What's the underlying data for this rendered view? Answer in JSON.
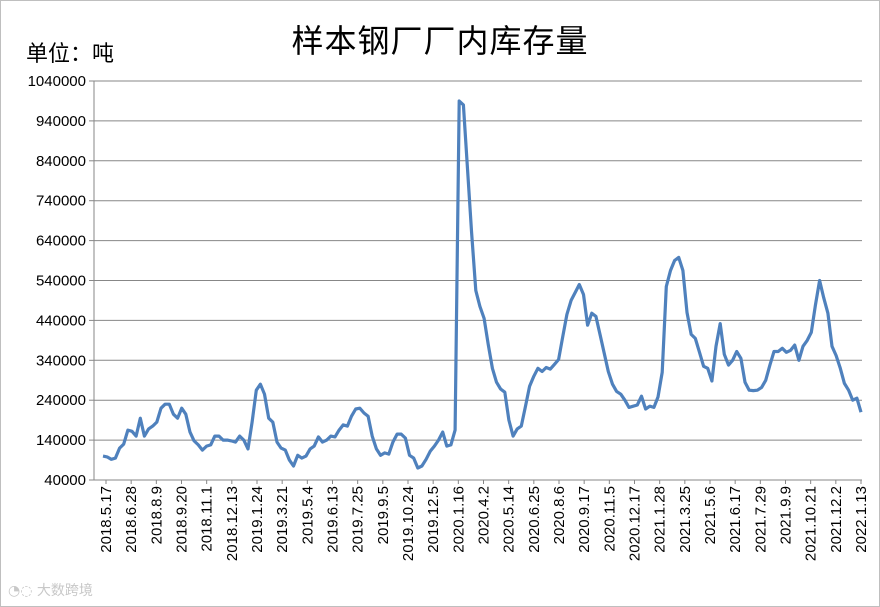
{
  "chart_data": {
    "type": "line",
    "title": "样本钢厂厂内库存量",
    "unit_label": "单位：吨",
    "ylim": [
      40000,
      1040000
    ],
    "yticks": [
      "40000",
      "140000",
      "240000",
      "340000",
      "440000",
      "540000",
      "640000",
      "740000",
      "840000",
      "940000",
      "1040000"
    ],
    "grid": true,
    "legend": "none",
    "line_color": "#4f81bd",
    "x_tick_labels": [
      "2018.5.17",
      "2018.6.28",
      "2018.8.9",
      "2018.9.20",
      "2018.11.1",
      "2018.12.13",
      "2019.1.24",
      "2019.3.21",
      "2019.5.4",
      "2019.6.13",
      "2019.7.25",
      "2019.9.5",
      "2019.10.24",
      "2019.12.5",
      "2020.1.16",
      "2020.4.2",
      "2020.5.14",
      "2020.6.25",
      "2020.8.6",
      "2020.9.17",
      "2020.11.5",
      "2020.12.17",
      "2021.1.28",
      "2021.3.25",
      "2021.5.6",
      "2021.6.17",
      "2021.7.29",
      "2021.9.9",
      "2021.10.21",
      "2021.12.2",
      "2022.1.13"
    ],
    "series": [
      {
        "values": [
          100000,
          98000,
          92000,
          95000,
          120000,
          130000,
          165000,
          162000,
          150000,
          195000,
          150000,
          168000,
          175000,
          185000,
          220000,
          230000,
          230000,
          205000,
          195000,
          220000,
          205000,
          160000,
          138000,
          128000,
          115000,
          125000,
          128000,
          150000,
          150000,
          140000,
          140000,
          138000,
          135000,
          150000,
          140000,
          118000,
          185000,
          265000,
          280000,
          255000,
          195000,
          185000,
          135000,
          120000,
          115000,
          90000,
          75000,
          102000,
          95000,
          100000,
          118000,
          125000,
          148000,
          135000,
          140000,
          150000,
          148000,
          165000,
          178000,
          175000,
          200000,
          218000,
          220000,
          208000,
          200000,
          150000,
          118000,
          102000,
          108000,
          105000,
          135000,
          155000,
          155000,
          145000,
          102000,
          95000,
          70000,
          75000,
          92000,
          112000,
          125000,
          140000,
          160000,
          125000,
          128000,
          165000,
          990000,
          980000,
          820000,
          660000,
          515000,
          475000,
          445000,
          380000,
          320000,
          285000,
          268000,
          260000,
          190000,
          150000,
          168000,
          175000,
          225000,
          275000,
          300000,
          320000,
          312000,
          322000,
          318000,
          330000,
          342000,
          400000,
          455000,
          490000,
          510000,
          530000,
          505000,
          428000,
          458000,
          450000,
          405000,
          358000,
          312000,
          280000,
          262000,
          255000,
          240000,
          222000,
          225000,
          228000,
          250000,
          218000,
          225000,
          222000,
          248000,
          310000,
          525000,
          565000,
          590000,
          598000,
          565000,
          460000,
          405000,
          395000,
          360000,
          325000,
          320000,
          288000,
          375000,
          432000,
          355000,
          328000,
          340000,
          362000,
          345000,
          285000,
          265000,
          264000,
          265000,
          272000,
          290000,
          328000,
          362000,
          362000,
          370000,
          360000,
          365000,
          378000,
          340000,
          375000,
          390000,
          410000,
          478000,
          540000,
          497000,
          458000,
          375000,
          352000,
          320000,
          282000,
          265000,
          240000,
          245000,
          210000
        ]
      }
    ]
  },
  "watermark": "大数跨境",
  "watermark_icon": "dashuju-logo-icon"
}
